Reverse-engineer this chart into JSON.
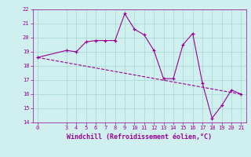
{
  "xlabel": "Windchill (Refroidissement éolien,°C)",
  "bg_color": "#cff0ee",
  "grid_color": "#b0ddd8",
  "line_color": "#990099",
  "x_data": [
    0,
    3,
    4,
    5,
    6,
    7,
    8,
    9,
    10,
    11,
    12,
    13,
    14,
    15,
    16,
    17,
    18,
    19,
    20,
    21
  ],
  "y_data": [
    18.6,
    19.1,
    19.0,
    19.7,
    19.8,
    19.8,
    19.8,
    21.7,
    20.6,
    20.2,
    19.1,
    17.1,
    17.1,
    19.5,
    20.3,
    16.8,
    14.3,
    15.2,
    16.3,
    16.0
  ],
  "trend_x": [
    0,
    21
  ],
  "trend_y": [
    18.6,
    16.0
  ],
  "xlim": [
    -0.5,
    21.5
  ],
  "ylim": [
    14,
    22
  ],
  "yticks": [
    14,
    15,
    16,
    17,
    18,
    19,
    20,
    21,
    22
  ],
  "xticks": [
    0,
    3,
    4,
    5,
    6,
    7,
    8,
    9,
    10,
    11,
    12,
    13,
    14,
    15,
    16,
    17,
    18,
    19,
    20,
    21
  ]
}
